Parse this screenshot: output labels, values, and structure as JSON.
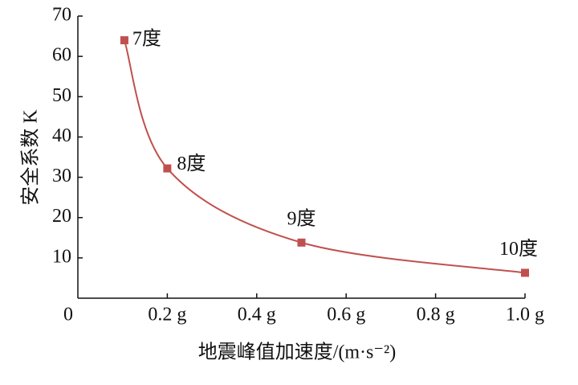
{
  "chart_data": {
    "type": "line",
    "xlabel": "地震峰值加速度/(m·s⁻²)",
    "ylabel": "安全系数 K",
    "series": [
      {
        "name": "安全系数",
        "color": "#c0504d",
        "x": [
          0.104,
          0.2,
          0.5,
          1.0
        ],
        "values": [
          64,
          32.2,
          13.8,
          6.3
        ],
        "point_labels": [
          "7度",
          "8度",
          "9度",
          "10度"
        ]
      }
    ],
    "xlim": [
      0,
      1.0
    ],
    "xticks": [
      0,
      {
        "value": 0.2,
        "label": "0.2 g"
      },
      {
        "value": 0.4,
        "label": "0.4 g"
      },
      {
        "value": 0.6,
        "label": "0.6 g"
      },
      {
        "value": 0.8,
        "label": "0.8 g"
      },
      {
        "value": 1.0,
        "label": "1.0 g"
      }
    ],
    "ylim": [
      0,
      70
    ],
    "yticks": [
      10,
      20,
      30,
      40,
      50,
      60,
      70
    ],
    "grid": false
  }
}
